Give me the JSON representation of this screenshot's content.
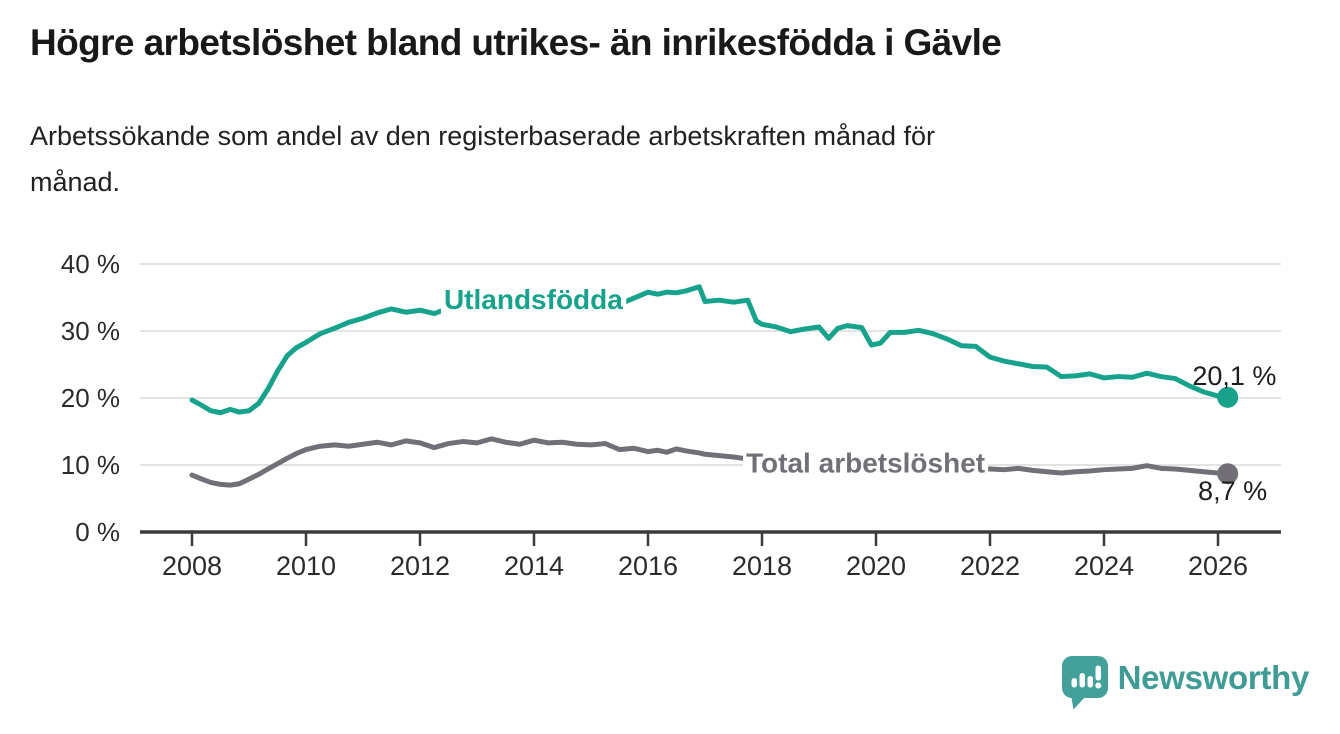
{
  "header": {
    "title": "Högre arbetslöshet bland utrikes- än inrikesfödda i Gävle",
    "subtitle": "Arbetssökande som andel av den registerbaserade arbetskraften månad för\nmånad."
  },
  "chart_data": {
    "type": "line",
    "unit": "%",
    "grid": true,
    "legend_position": "inline-direct-labels",
    "ylim": [
      0,
      40
    ],
    "y_ticks": [
      0,
      10,
      20,
      30,
      40
    ],
    "y_tick_labels": [
      "0 %",
      "10 %",
      "20 %",
      "30 %",
      "40 %"
    ],
    "x_ticks": [
      2008,
      2010,
      2012,
      2014,
      2016,
      2018,
      2020,
      2022,
      2024,
      2026
    ],
    "x_tick_labels": [
      "2008",
      "2010",
      "2012",
      "2014",
      "2016",
      "2018",
      "2020",
      "2022",
      "2024",
      "2026"
    ],
    "x": [
      2008.0,
      2008.17,
      2008.33,
      2008.5,
      2008.67,
      2008.83,
      2009.0,
      2009.17,
      2009.33,
      2009.5,
      2009.67,
      2009.83,
      2010.0,
      2010.25,
      2010.5,
      2010.75,
      2011.0,
      2011.25,
      2011.5,
      2011.75,
      2012.0,
      2012.25,
      2012.5,
      2012.75,
      2013.0,
      2013.25,
      2013.5,
      2013.75,
      2014.0,
      2014.25,
      2014.5,
      2014.75,
      2015.0,
      2015.25,
      2015.5,
      2015.75,
      2016.0,
      2016.17,
      2016.33,
      2016.5,
      2016.67,
      2016.9,
      2017.0,
      2017.25,
      2017.5,
      2017.75,
      2017.9,
      2018.0,
      2018.25,
      2018.5,
      2018.75,
      2019.0,
      2019.17,
      2019.33,
      2019.5,
      2019.75,
      2019.92,
      2020.08,
      2020.25,
      2020.5,
      2020.75,
      2021.0,
      2021.25,
      2021.5,
      2021.75,
      2022.0,
      2022.25,
      2022.5,
      2022.75,
      2023.0,
      2023.25,
      2023.5,
      2023.75,
      2024.0,
      2024.25,
      2024.5,
      2024.75,
      2025.0,
      2025.25,
      2025.5,
      2025.75,
      2026.0,
      2026.17
    ],
    "series": [
      {
        "name": "Utlandsfödda",
        "color": "#17A28C",
        "end_label": "20,1 %",
        "values": [
          19.7,
          18.9,
          18.1,
          17.8,
          18.3,
          17.9,
          18.1,
          19.2,
          21.3,
          24.0,
          26.3,
          27.5,
          28.3,
          29.6,
          30.4,
          31.3,
          31.9,
          32.7,
          33.3,
          32.8,
          33.1,
          32.6,
          33.4,
          32.9,
          33.2,
          33.1,
          33.5,
          33.2,
          33.6,
          33.4,
          33.8,
          33.5,
          33.9,
          34.3,
          34.0,
          34.9,
          35.8,
          35.5,
          35.8,
          35.7,
          36.0,
          36.6,
          34.4,
          34.6,
          34.3,
          34.6,
          31.5,
          31.0,
          30.6,
          29.9,
          30.3,
          30.6,
          28.9,
          30.4,
          30.8,
          30.5,
          27.9,
          28.2,
          29.8,
          29.8,
          30.1,
          29.6,
          28.8,
          27.8,
          27.7,
          26.1,
          25.5,
          25.1,
          24.7,
          24.6,
          23.2,
          23.3,
          23.6,
          23.0,
          23.2,
          23.1,
          23.7,
          23.2,
          22.9,
          21.8,
          20.9,
          20.3,
          20.1
        ]
      },
      {
        "name": "Total arbetslöshet",
        "color": "#727076",
        "end_label": "8,7 %",
        "values": [
          8.5,
          7.9,
          7.4,
          7.1,
          7.0,
          7.2,
          7.9,
          8.6,
          9.4,
          10.2,
          11.0,
          11.7,
          12.3,
          12.8,
          13.0,
          12.8,
          13.1,
          13.4,
          13.0,
          13.6,
          13.3,
          12.6,
          13.2,
          13.5,
          13.3,
          13.9,
          13.4,
          13.1,
          13.7,
          13.3,
          13.4,
          13.1,
          13.0,
          13.2,
          12.3,
          12.5,
          12.0,
          12.2,
          11.9,
          12.4,
          12.1,
          11.8,
          11.6,
          11.4,
          11.2,
          10.9,
          10.7,
          10.6,
          10.4,
          10.2,
          10.1,
          10.0,
          9.9,
          9.8,
          9.7,
          9.6,
          9.7,
          10.2,
          10.9,
          10.7,
          10.4,
          10.1,
          9.8,
          9.6,
          9.5,
          9.4,
          9.3,
          9.5,
          9.2,
          9.0,
          8.8,
          9.0,
          9.1,
          9.3,
          9.4,
          9.5,
          9.9,
          9.5,
          9.4,
          9.2,
          9.0,
          8.8,
          8.7
        ]
      }
    ],
    "series_labels": [
      {
        "text": "Utlandsfödda",
        "x": 2012.42,
        "y": 34.7,
        "color": "#17A28C"
      },
      {
        "text": "Total arbetslöshet",
        "x": 2017.72,
        "y": 10.3,
        "color": "#727076"
      }
    ],
    "annotations": [
      {
        "text": "20,1 %",
        "x": 2025.55,
        "y": 23.3,
        "color": "#1d1d1d"
      },
      {
        "text": "8,7 %",
        "x": 2025.65,
        "y": 6.1,
        "color": "#1d1d1d"
      }
    ],
    "colors": {
      "gridline": "#DADADA",
      "axis": "#3B3B3B",
      "tick_text": "#2B2B2B"
    }
  },
  "footer": {
    "brand": "Newsworthy",
    "brand_color": "#3E9B95"
  }
}
